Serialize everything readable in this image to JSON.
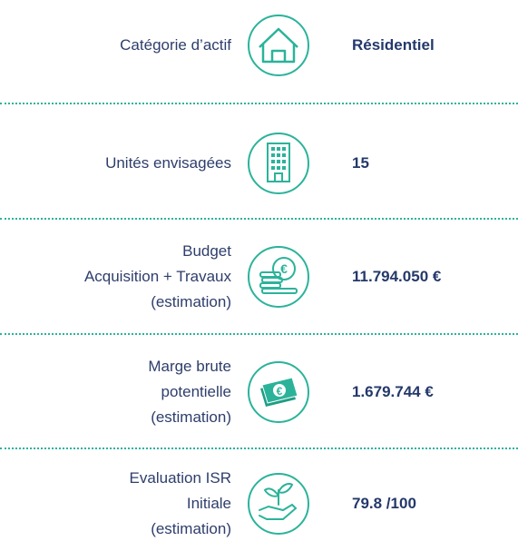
{
  "rows": [
    {
      "label": [
        "Catégorie d’actif"
      ],
      "value": "Résidentiel"
    },
    {
      "label": [
        "Unités envisagées"
      ],
      "value": "15"
    },
    {
      "label": [
        "Budget",
        "Acquisition + Travaux",
        "(estimation)"
      ],
      "value": "11.794.050 €"
    },
    {
      "label": [
        "Marge brute",
        "potentielle",
        "(estimation)"
      ],
      "value": "1.679.744 €"
    },
    {
      "label": [
        "Evaluation ISR",
        "Initiale",
        "(estimation)"
      ],
      "value": "79.8 /100"
    }
  ]
}
